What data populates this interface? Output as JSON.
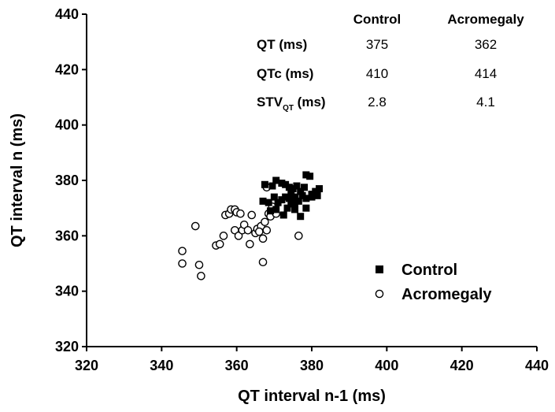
{
  "chart_data": {
    "type": "scatter",
    "xlabel": "QT interval n-1 (ms)",
    "ylabel": "QT interval n (ms)",
    "xlim": [
      320,
      440
    ],
    "ylim": [
      320,
      440
    ],
    "xticks": [
      320,
      340,
      360,
      380,
      400,
      420,
      440
    ],
    "yticks": [
      320,
      340,
      360,
      380,
      400,
      420,
      440
    ],
    "grid": false,
    "legend_position": "lower-right",
    "series": [
      {
        "name": "Control",
        "marker": "filled-square",
        "color": "#000000",
        "points": [
          [
            367.5,
            378.5
          ],
          [
            369.5,
            378
          ],
          [
            370.5,
            380
          ],
          [
            372,
            379
          ],
          [
            373,
            378.5
          ],
          [
            374,
            377.5
          ],
          [
            375,
            377
          ],
          [
            376,
            378
          ],
          [
            377,
            376
          ],
          [
            378,
            377.5
          ],
          [
            378.5,
            382
          ],
          [
            379.5,
            381.5
          ],
          [
            380,
            375
          ],
          [
            381,
            376
          ],
          [
            382,
            377
          ],
          [
            381.5,
            374.5
          ],
          [
            380,
            374
          ],
          [
            378.5,
            373.5
          ],
          [
            377.5,
            374.5
          ],
          [
            376.5,
            372.5
          ],
          [
            375.5,
            372
          ],
          [
            374.5,
            371.5
          ],
          [
            374,
            373.5
          ],
          [
            373,
            374
          ],
          [
            372,
            373
          ],
          [
            371,
            372
          ],
          [
            370,
            374
          ],
          [
            368.5,
            372
          ],
          [
            367,
            372.5
          ],
          [
            369,
            369
          ],
          [
            370.5,
            369.5
          ],
          [
            372.5,
            367.5
          ],
          [
            373.5,
            370
          ],
          [
            375.5,
            369.5
          ],
          [
            377,
            367
          ],
          [
            378.5,
            370
          ],
          [
            374.5,
            376
          ],
          [
            375.5,
            374
          ]
        ]
      },
      {
        "name": "Acromegaly",
        "marker": "open-circle",
        "color": "#000000",
        "points": [
          [
            345.5,
            354.5
          ],
          [
            345.5,
            350
          ],
          [
            349,
            363.5
          ],
          [
            350,
            349.5
          ],
          [
            350.5,
            345.5
          ],
          [
            354.5,
            356.5
          ],
          [
            355.5,
            357
          ],
          [
            356.5,
            360
          ],
          [
            357,
            367.5
          ],
          [
            358,
            368
          ],
          [
            358.5,
            369.5
          ],
          [
            359.5,
            369.5
          ],
          [
            360,
            368.5
          ],
          [
            359.5,
            362
          ],
          [
            360.5,
            360
          ],
          [
            361.5,
            362
          ],
          [
            362,
            364
          ],
          [
            363,
            362
          ],
          [
            363.5,
            357
          ],
          [
            364,
            367.5
          ],
          [
            365,
            361
          ],
          [
            365.5,
            362.5
          ],
          [
            366.5,
            363.5
          ],
          [
            367,
            359
          ],
          [
            367.5,
            365
          ],
          [
            368,
            362
          ],
          [
            368.5,
            368
          ],
          [
            369,
            367
          ],
          [
            369.5,
            370.5
          ],
          [
            370.5,
            368
          ],
          [
            368,
            377.5
          ],
          [
            367,
            350.5
          ],
          [
            376.5,
            360
          ],
          [
            361,
            368
          ],
          [
            366,
            361.5
          ]
        ]
      }
    ],
    "table": {
      "col_headers": [
        "Control",
        "Acromegaly"
      ],
      "rows": [
        {
          "label": "QT (ms)",
          "label_main": "QT",
          "label_sub": "",
          "label_rest": " (ms)",
          "values": [
            "375",
            "362"
          ]
        },
        {
          "label": "QTc (ms)",
          "label_main": "QTc",
          "label_sub": "",
          "label_rest": " (ms)",
          "values": [
            "410",
            "414"
          ]
        },
        {
          "label": "STVQT (ms)",
          "label_main": "STV",
          "label_sub": "QT",
          "label_rest": " (ms)",
          "values": [
            "2.8",
            "4.1"
          ]
        }
      ]
    }
  }
}
